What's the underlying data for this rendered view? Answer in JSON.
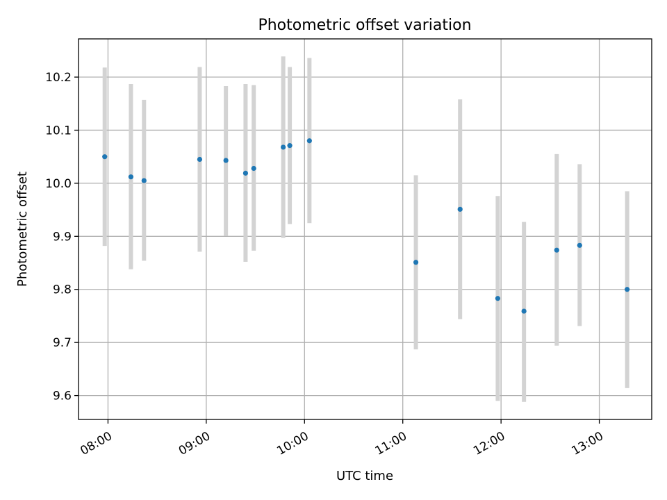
{
  "chart_data": {
    "type": "scatter",
    "title": "Photometric offset variation",
    "xlabel": "UTC time",
    "ylabel": "Photometric offset",
    "xlim": [
      "07:42",
      "13:32"
    ],
    "ylim": [
      9.555,
      10.272
    ],
    "x_ticks": [
      "08:00",
      "09:00",
      "10:00",
      "11:00",
      "12:00",
      "13:00"
    ],
    "y_ticks": [
      9.6,
      9.7,
      9.8,
      9.9,
      10.0,
      10.1,
      10.2
    ],
    "grid": true,
    "point_color": "#1f77b4",
    "errorbar_color": "#d3d3d3",
    "points": [
      {
        "x": "07:58",
        "y": 10.05,
        "low": 9.882,
        "high": 10.218
      },
      {
        "x": "08:14",
        "y": 10.012,
        "low": 9.838,
        "high": 10.187
      },
      {
        "x": "08:22",
        "y": 10.005,
        "low": 9.854,
        "high": 10.157
      },
      {
        "x": "08:56",
        "y": 10.045,
        "low": 9.871,
        "high": 10.219
      },
      {
        "x": "09:12",
        "y": 10.043,
        "low": 9.901,
        "high": 10.183
      },
      {
        "x": "09:24",
        "y": 10.019,
        "low": 9.852,
        "high": 10.187
      },
      {
        "x": "09:29",
        "y": 10.028,
        "low": 9.873,
        "high": 10.185
      },
      {
        "x": "09:47",
        "y": 10.068,
        "low": 9.897,
        "high": 10.239
      },
      {
        "x": "09:51",
        "y": 10.071,
        "low": 9.923,
        "high": 10.219
      },
      {
        "x": "10:03",
        "y": 10.08,
        "low": 9.925,
        "high": 10.236
      },
      {
        "x": "11:08",
        "y": 9.851,
        "low": 9.687,
        "high": 10.015
      },
      {
        "x": "11:35",
        "y": 9.951,
        "low": 9.744,
        "high": 10.158
      },
      {
        "x": "11:58",
        "y": 9.783,
        "low": 9.59,
        "high": 9.976
      },
      {
        "x": "12:14",
        "y": 9.759,
        "low": 9.588,
        "high": 9.927
      },
      {
        "x": "12:34",
        "y": 9.874,
        "low": 9.694,
        "high": 10.055
      },
      {
        "x": "12:48",
        "y": 9.883,
        "low": 9.731,
        "high": 10.036
      },
      {
        "x": "13:17",
        "y": 9.8,
        "low": 9.614,
        "high": 9.985
      }
    ]
  }
}
